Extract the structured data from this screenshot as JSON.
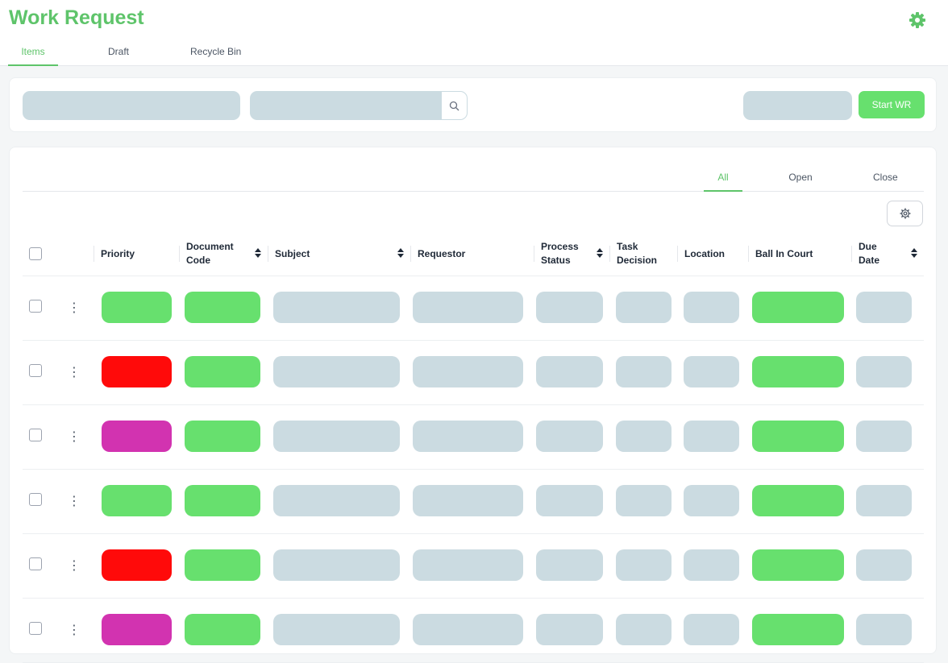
{
  "header": {
    "title": "Work Request",
    "tabs": [
      {
        "label": "Items",
        "active": true
      },
      {
        "label": "Draft",
        "active": false
      },
      {
        "label": "Recycle Bin",
        "active": false
      }
    ]
  },
  "toolbar": {
    "start_label": "Start WR"
  },
  "status_tabs": [
    {
      "label": "All",
      "active": true
    },
    {
      "label": "Open",
      "active": false
    },
    {
      "label": "Close",
      "active": false
    }
  ],
  "table": {
    "columns": [
      {
        "label": "Priority",
        "sortable": false
      },
      {
        "label": "Document Code",
        "sortable": true
      },
      {
        "label": "Subject",
        "sortable": true
      },
      {
        "label": "Requestor",
        "sortable": false
      },
      {
        "label": "Process Status",
        "sortable": true
      },
      {
        "label": "Task Decision",
        "sortable": false
      },
      {
        "label": "Location",
        "sortable": false
      },
      {
        "label": "Ball In Court",
        "sortable": false
      },
      {
        "label": "Due Date",
        "sortable": true
      }
    ],
    "rows": [
      {
        "priority_color": "#67e06e"
      },
      {
        "priority_color": "#ff0a0a"
      },
      {
        "priority_color": "#d233b0"
      },
      {
        "priority_color": "#67e06e"
      },
      {
        "priority_color": "#ff0a0a"
      },
      {
        "priority_color": "#d233b0"
      }
    ]
  },
  "colors": {
    "accent": "#5ec46a",
    "button_green": "#67e06e",
    "skeleton": "#cbdbe1",
    "priority_red": "#ff0a0a",
    "priority_magenta": "#d233b0"
  },
  "icons": {
    "settings": "gear-icon",
    "search": "search-icon",
    "column_settings": "gear-outline-icon",
    "row_menu": "kebab-icon",
    "sort": "sort-icon"
  }
}
